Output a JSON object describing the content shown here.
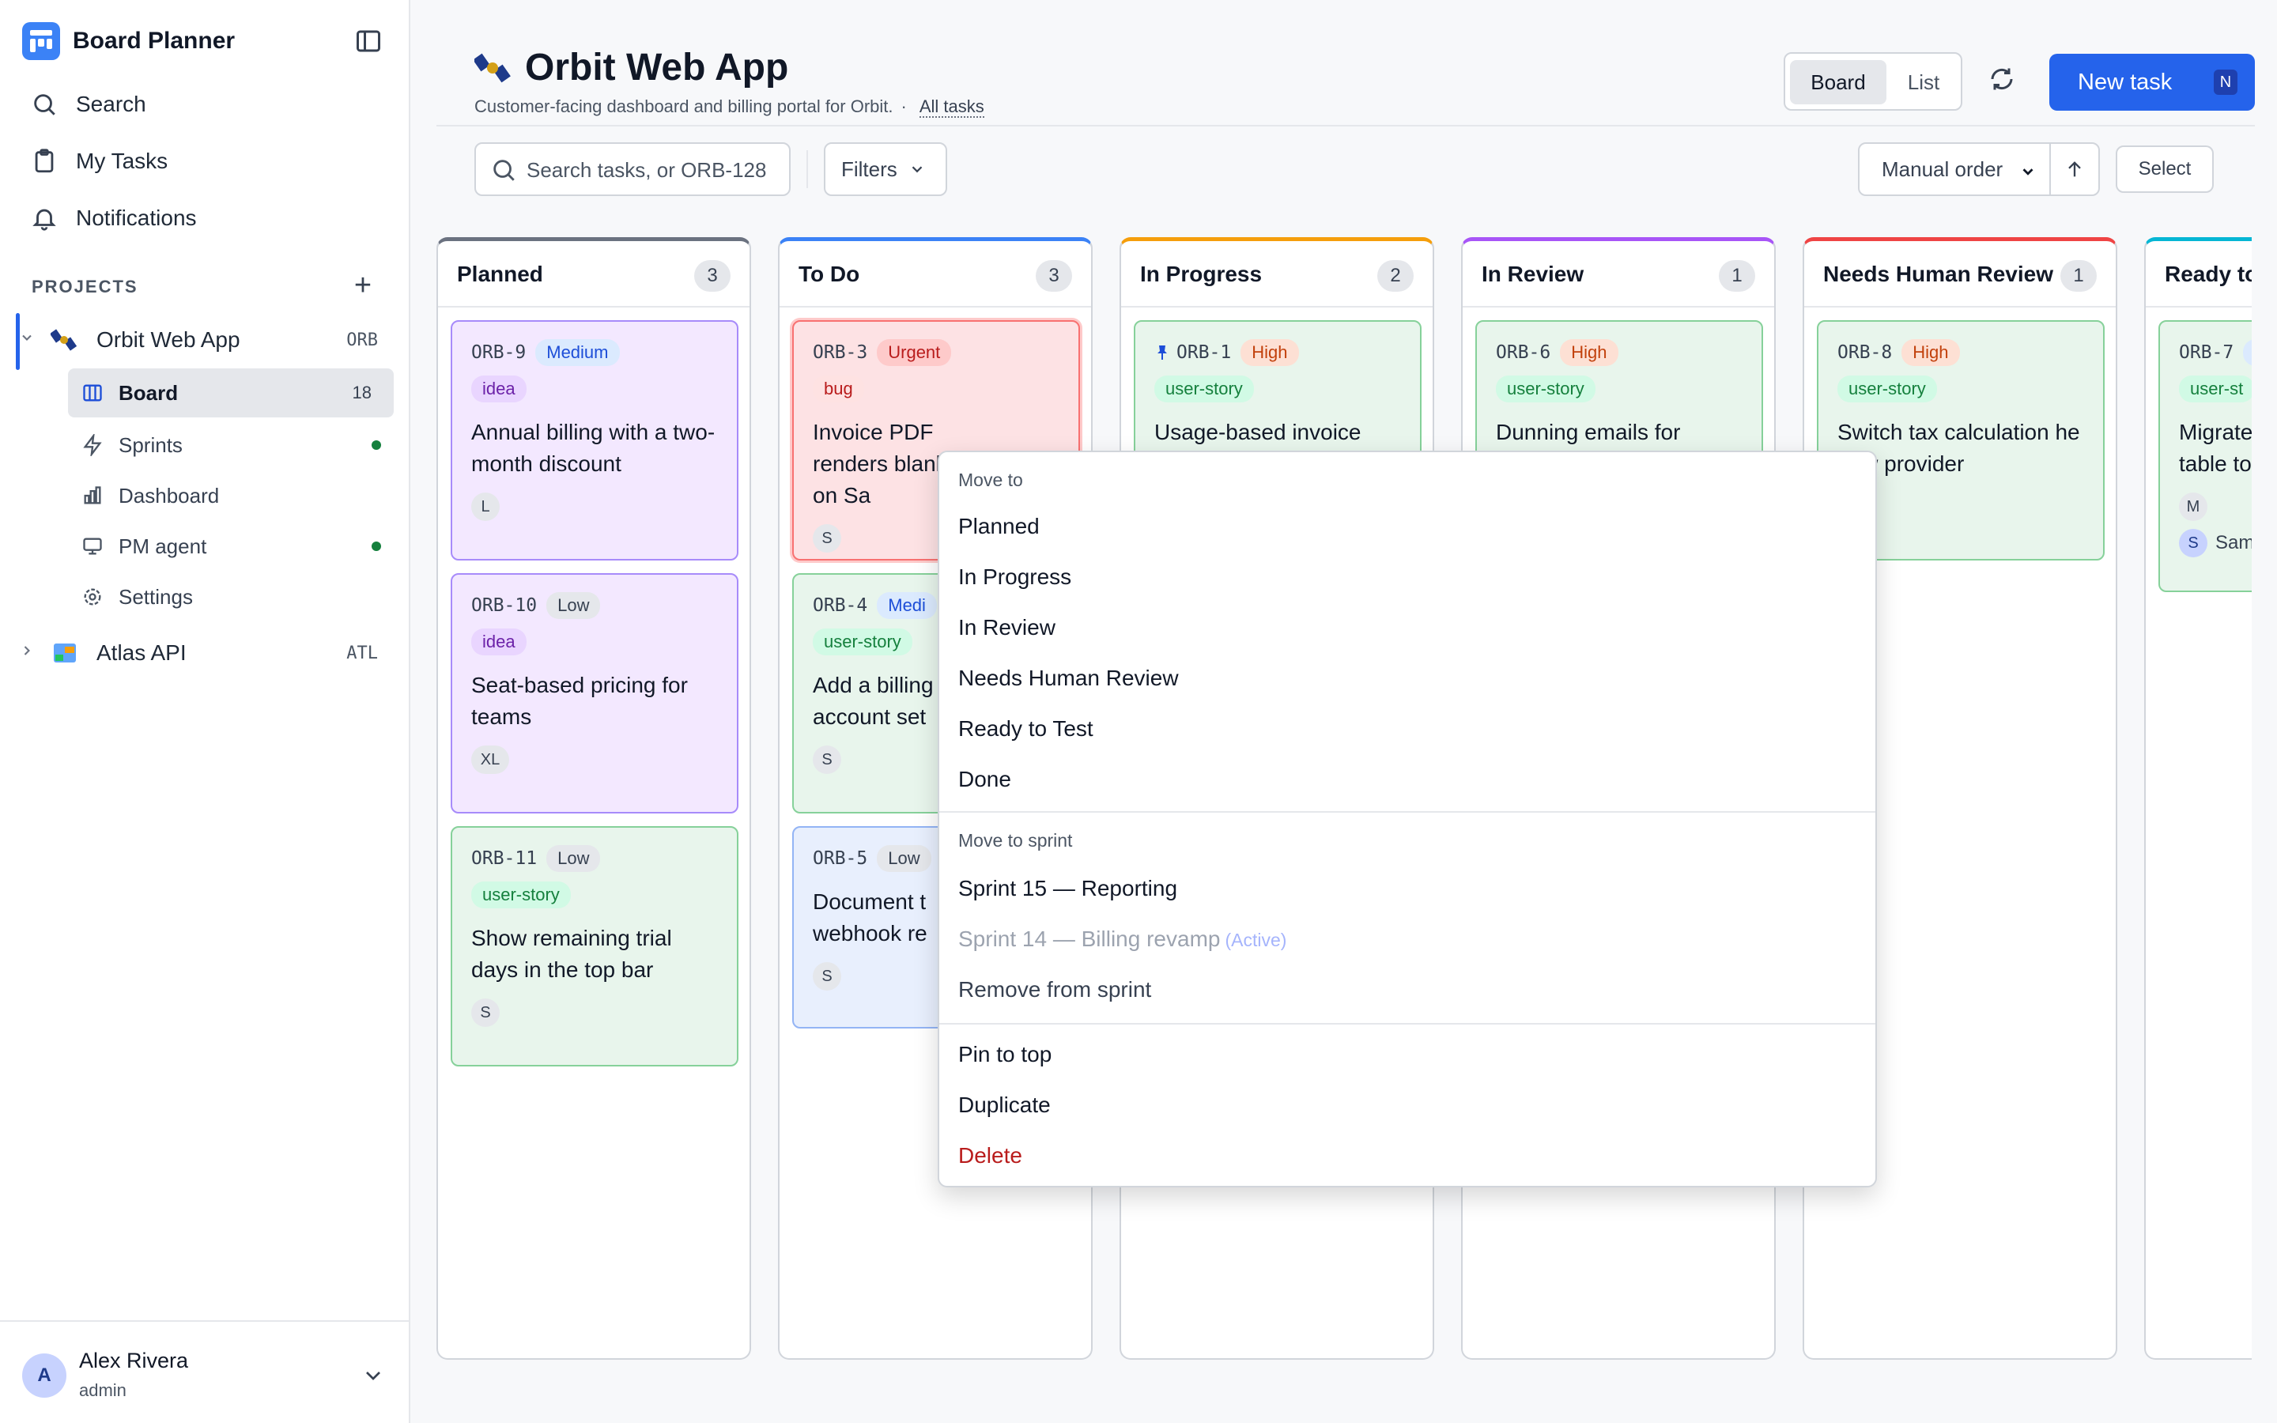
{
  "app": {
    "name": "Board Planner"
  },
  "nav": {
    "search": "Search",
    "my_tasks": "My Tasks",
    "notifications": "Notifications"
  },
  "projects": {
    "label": "PROJECTS",
    "items": [
      {
        "name": "Orbit Web App",
        "code": "ORB",
        "sub": {
          "board": {
            "label": "Board",
            "count": "18"
          },
          "sprints": "Sprints",
          "dashboard": "Dashboard",
          "pm_agent": "PM agent",
          "settings": "Settings"
        }
      },
      {
        "name": "Atlas API",
        "code": "ATL"
      }
    ]
  },
  "user": {
    "initial": "A",
    "name": "Alex Rivera",
    "role": "admin"
  },
  "header": {
    "title": "Orbit Web App",
    "description": "Customer-facing dashboard and billing portal for Orbit.",
    "separator": "·",
    "all_tasks_link": "All tasks",
    "view_board": "Board",
    "view_list": "List",
    "new_task": "New task",
    "new_task_shortcut": "N"
  },
  "toolbar": {
    "search_placeholder": "Search tasks, or ORB-128",
    "filters": "Filters",
    "sort": "Manual order",
    "select": "Select"
  },
  "columns": [
    {
      "name": "Planned",
      "count": "3",
      "color": "#6b7280",
      "cards": [
        {
          "id": "ORB-9",
          "priority": "Medium",
          "tag": "idea",
          "title": "Annual billing with a two-month discount",
          "assignee": "L"
        },
        {
          "id": "ORB-10",
          "priority": "Low",
          "tag": "idea",
          "title": "Seat-based pricing for teams",
          "assignee": "XL"
        },
        {
          "id": "ORB-11",
          "priority": "Low",
          "tag": "user-story",
          "title": "Show remaining trial days in the top bar",
          "assignee": "S"
        }
      ]
    },
    {
      "name": "To Do",
      "count": "3",
      "color": "#3b82f6",
      "cards": [
        {
          "id": "ORB-3",
          "priority": "Urgent",
          "tag": "bug",
          "title": "Invoice PDF renders blank on Sa",
          "assignee": "S"
        },
        {
          "id": "ORB-4",
          "priority": "Medi",
          "tag": "user-story",
          "title": "Add a billing account set",
          "assignee": "S"
        },
        {
          "id": "ORB-5",
          "priority": "Low",
          "title": "Document t webhook re",
          "assignee": "S"
        }
      ]
    },
    {
      "name": "In Progress",
      "count": "2",
      "color": "#f59e0b",
      "cards": [
        {
          "id": "ORB-1",
          "priority": "High",
          "tag": "user-story",
          "title": "Usage-based invoice",
          "pinned": "pin-icon"
        }
      ]
    },
    {
      "name": "In Review",
      "count": "1",
      "color": "#a855f7",
      "cards": [
        {
          "id": "ORB-6",
          "priority": "High",
          "tag": "user-story",
          "title": "Dunning emails for"
        }
      ]
    },
    {
      "name": "Needs Human Review",
      "count": "1",
      "color": "#ef4444",
      "cards": [
        {
          "id": "ORB-8",
          "priority": "High",
          "tag": "user-story",
          "title": "Switch tax calculation he new provider"
        }
      ]
    },
    {
      "name": "Ready to",
      "color": "#06b6d4",
      "cards": [
        {
          "id": "ORB-7",
          "tag": "user-st",
          "title": "Migrate table to",
          "assignees": [
            "M",
            "S"
          ],
          "assignee_name": "Sam"
        }
      ]
    }
  ],
  "context_menu": {
    "move_to_label": "Move to",
    "move_to": [
      "Planned",
      "In Progress",
      "In Review",
      "Needs Human Review",
      "Ready to Test",
      "Done"
    ],
    "sprint_label": "Move to sprint",
    "sprint_15": "Sprint 15 — Reporting",
    "sprint_14": "Sprint 14 — Billing revamp",
    "sprint_14_status": "(Active)",
    "remove_sprint": "Remove from sprint",
    "pin": "Pin to top",
    "duplicate": "Duplicate",
    "delete": "Delete"
  }
}
